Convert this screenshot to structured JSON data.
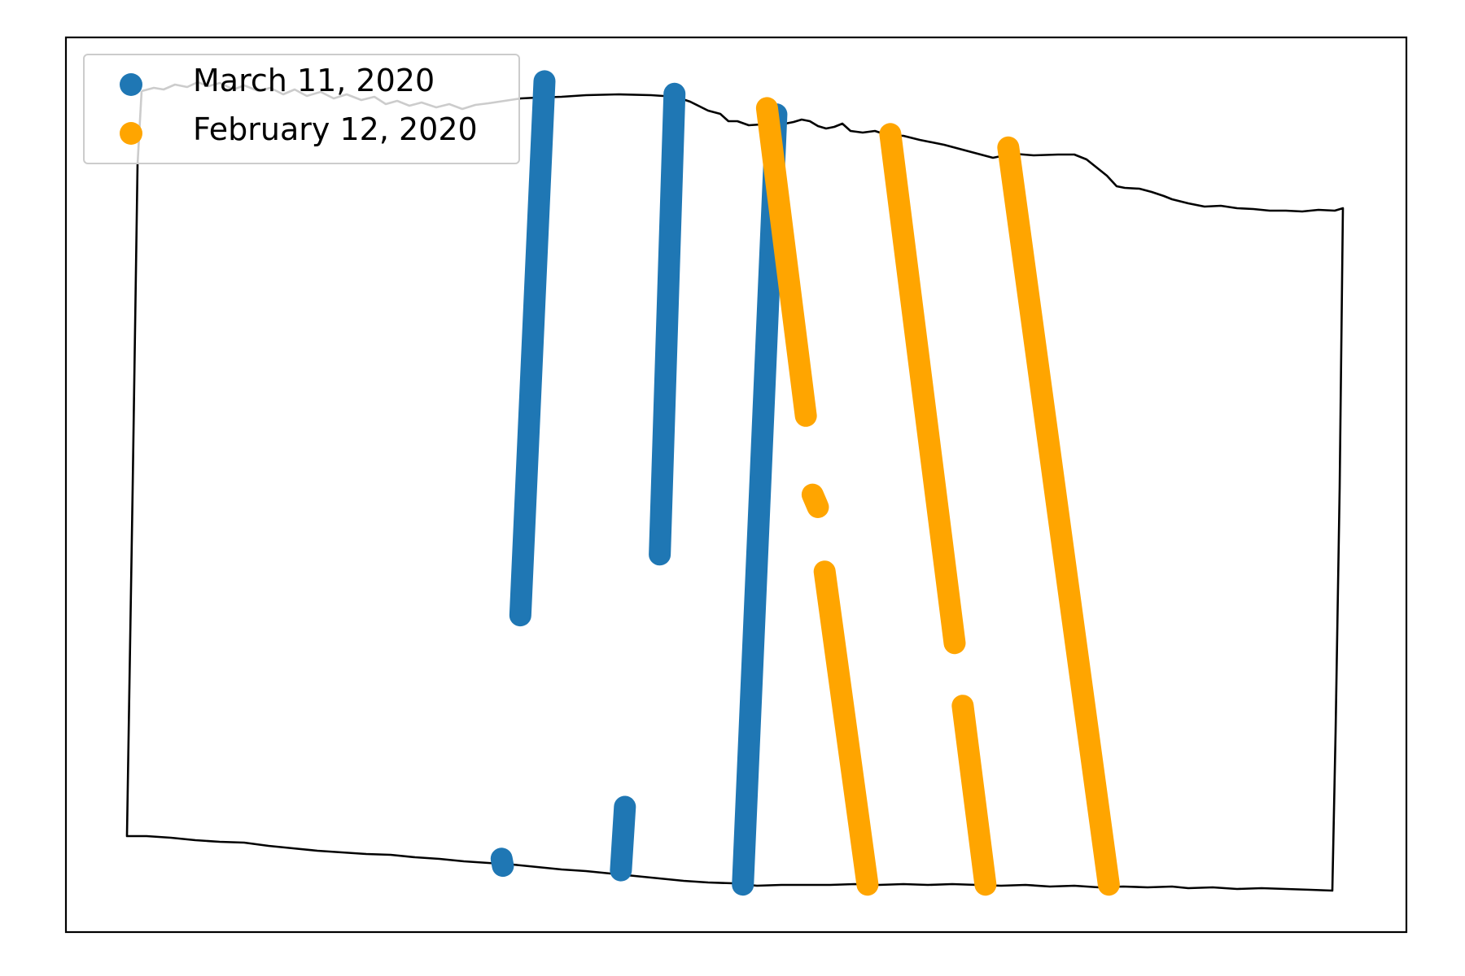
{
  "chart_data": {
    "type": "scatter",
    "title": "",
    "xlabel": "",
    "ylabel": "",
    "grid": false,
    "axis_ticks": false,
    "legend": {
      "placement": "top-left",
      "entries": [
        {
          "label": "March 11, 2020",
          "color": "#1f77b4"
        },
        {
          "label": "February 12, 2020",
          "color": "#ffa500"
        }
      ]
    },
    "background_outline": {
      "description": "state boundary outline (thin black line)",
      "color": "#000000"
    },
    "series": [
      {
        "name": "March 11, 2020",
        "color": "#1f77b4",
        "tracks": [
          {
            "x1": 0.357,
            "y1": 0.951,
            "x2": 0.339,
            "y2": 0.354
          },
          {
            "x1": 0.454,
            "y1": 0.937,
            "x2": 0.443,
            "y2": 0.422
          },
          {
            "x1": 0.53,
            "y1": 0.914,
            "x2": 0.505,
            "y2": 0.053
          },
          {
            "x1": 0.325,
            "y1": 0.082,
            "x2": 0.326,
            "y2": 0.074
          },
          {
            "x1": 0.417,
            "y1": 0.14,
            "x2": 0.414,
            "y2": 0.069
          }
        ]
      },
      {
        "name": "February 12, 2020",
        "color": "#ffa500",
        "tracks": [
          {
            "x1": 0.523,
            "y1": 0.921,
            "x2": 0.552,
            "y2": 0.577
          },
          {
            "x1": 0.557,
            "y1": 0.489,
            "x2": 0.561,
            "y2": 0.475
          },
          {
            "x1": 0.566,
            "y1": 0.403,
            "x2": 0.598,
            "y2": 0.053
          },
          {
            "x1": 0.615,
            "y1": 0.892,
            "x2": 0.663,
            "y2": 0.323
          },
          {
            "x1": 0.669,
            "y1": 0.253,
            "x2": 0.686,
            "y2": 0.053
          },
          {
            "x1": 0.703,
            "y1": 0.877,
            "x2": 0.778,
            "y2": 0.053
          }
        ]
      }
    ]
  }
}
